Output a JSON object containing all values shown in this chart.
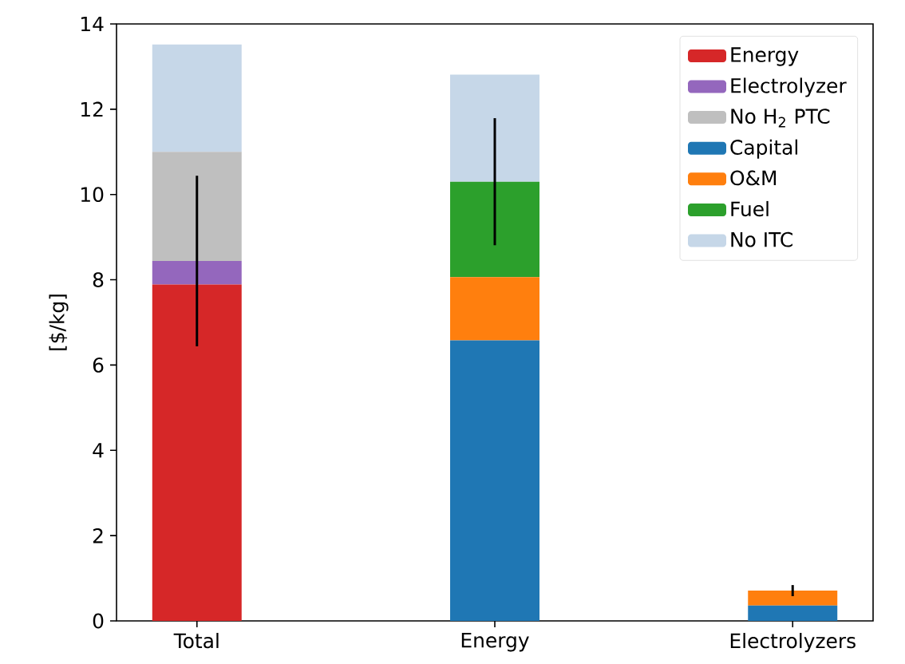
{
  "chart_data": {
    "type": "bar",
    "stacked": true,
    "ylabel": "[$/kg]",
    "categories": [
      "Total",
      "Energy",
      "Electrolyzers"
    ],
    "ylim": [
      0,
      14
    ],
    "yticks": [
      0,
      2,
      4,
      6,
      8,
      10,
      12,
      14
    ],
    "legend": "top right",
    "grid": false,
    "series": [
      {
        "name": "Energy",
        "color": "#d62728",
        "values": [
          7.89,
          null,
          null
        ]
      },
      {
        "name": "Electrolyzer",
        "color": "#9467bd",
        "values": [
          0.55,
          null,
          null
        ],
        "errors": [
          2.0,
          null,
          null
        ]
      },
      {
        "name": "No H$_{2}$ PTC",
        "color": "#bfbfbf",
        "values": [
          2.56,
          null,
          null
        ]
      },
      {
        "name": "Capital",
        "color": "#1f77b4",
        "values": [
          null,
          6.58,
          0.36
        ]
      },
      {
        "name": "O&M",
        "color": "#ff7f0e",
        "values": [
          null,
          1.48,
          0.35
        ],
        "errors": [
          null,
          null,
          0.13
        ]
      },
      {
        "name": "Fuel",
        "color": "#2ca02c",
        "values": [
          null,
          2.24,
          null
        ],
        "errors": [
          null,
          1.49,
          null
        ]
      },
      {
        "name": "No ITC",
        "color": "#c6d7e8",
        "values": [
          2.52,
          2.51,
          null
        ]
      }
    ]
  }
}
